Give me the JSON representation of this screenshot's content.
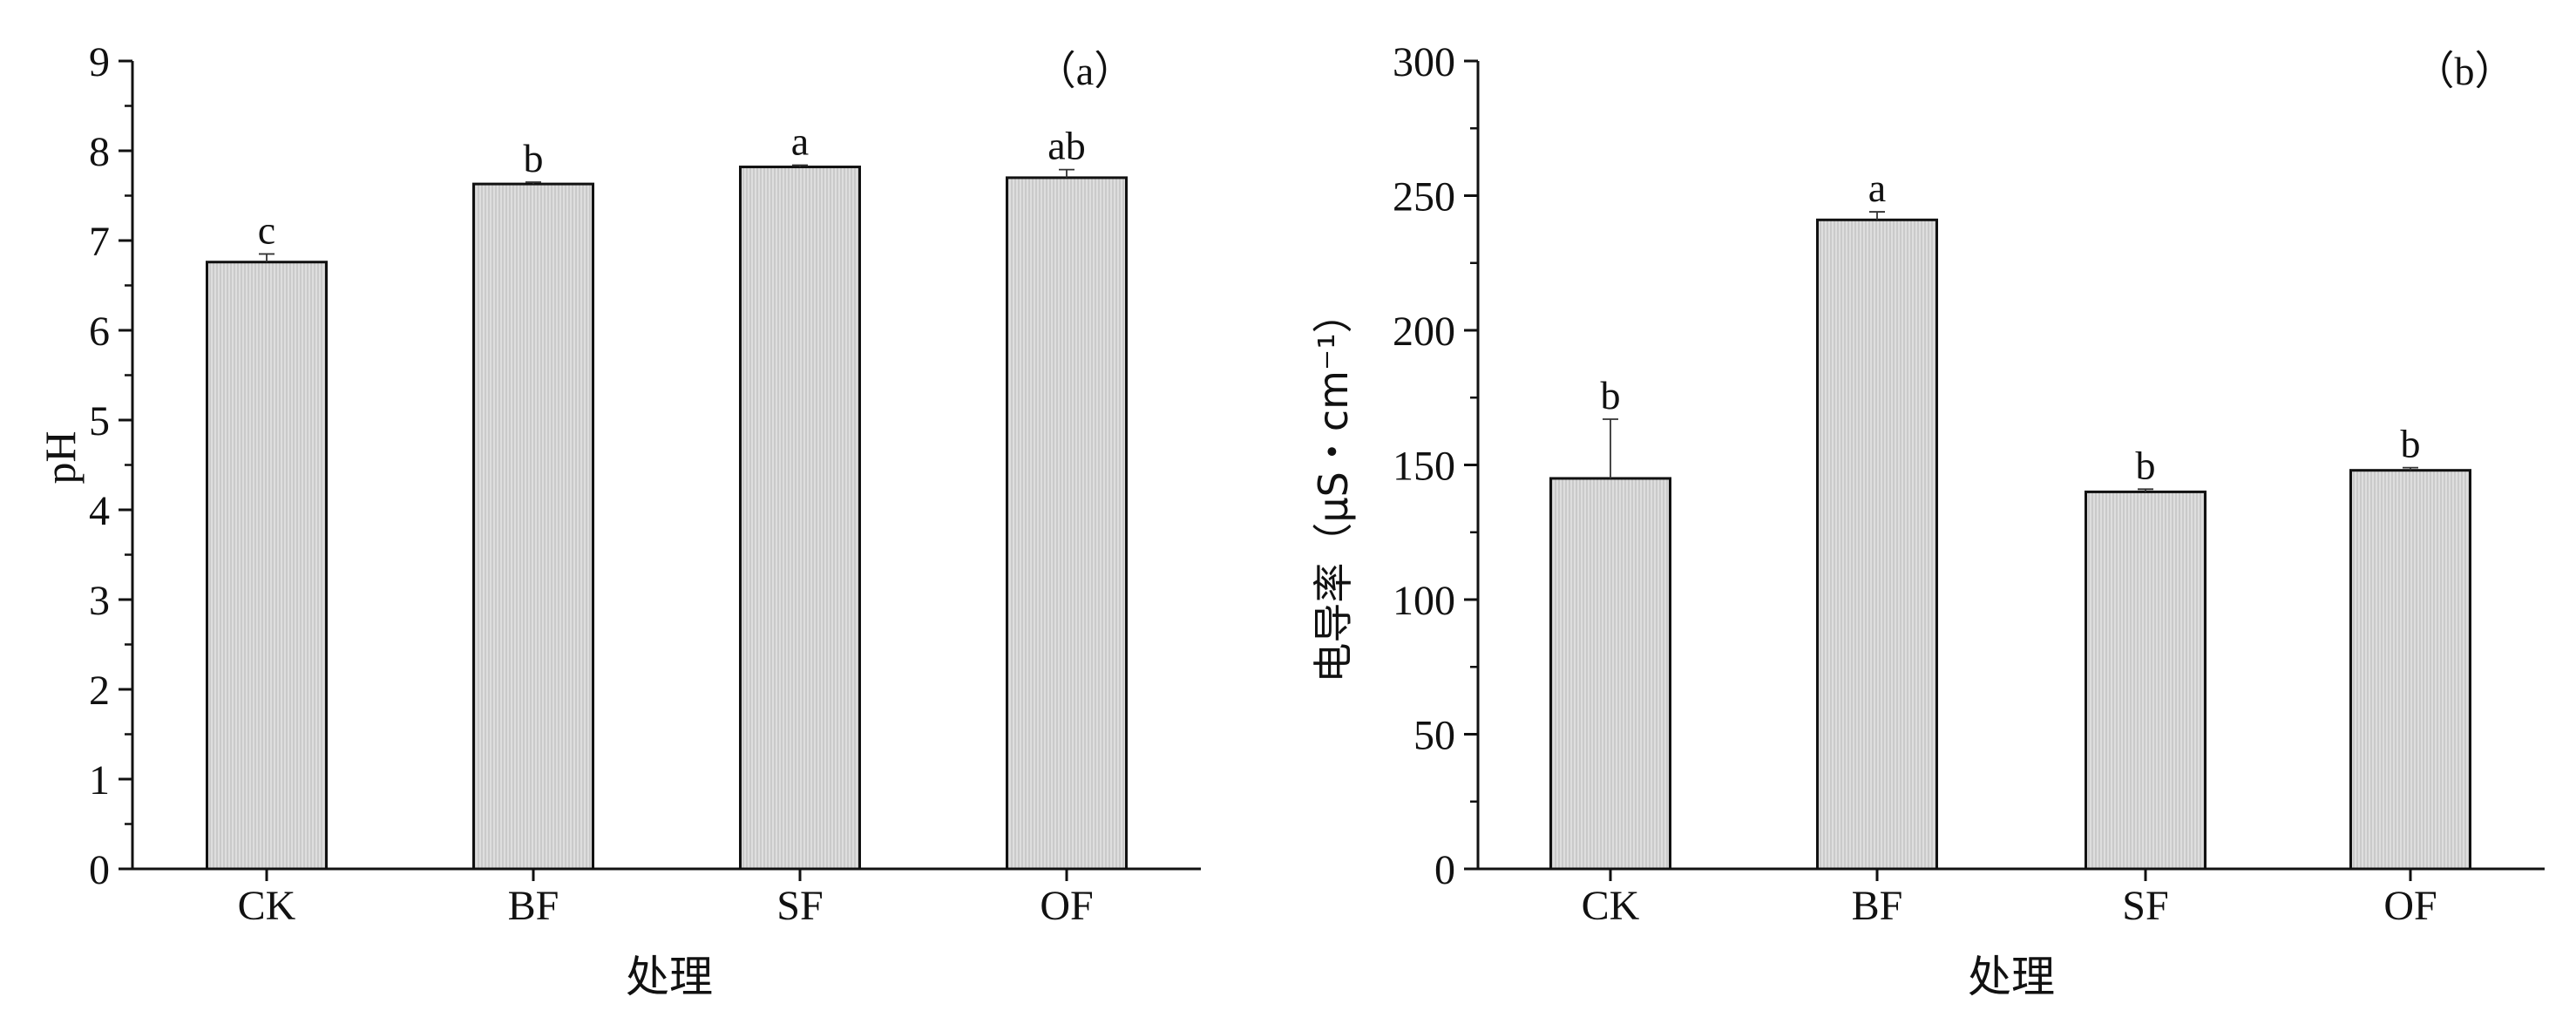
{
  "chart_data": [
    {
      "type": "bar",
      "panel_label": "（a）",
      "title": "",
      "xlabel": "处理",
      "ylabel": "pH",
      "categories": [
        "CK",
        "BF",
        "SF",
        "OF"
      ],
      "values": [
        6.76,
        7.63,
        7.82,
        7.7
      ],
      "errors": [
        0.09,
        0.02,
        0.02,
        0.09
      ],
      "significance_labels": [
        "c",
        "b",
        "a",
        "ab"
      ],
      "ylim": [
        0,
        9
      ],
      "yticks": [
        "0",
        "1",
        "2",
        "3",
        "4",
        "5",
        "6",
        "7",
        "8",
        "9"
      ],
      "grid": false,
      "bar_color": "#d9d9d9",
      "bar_edge_color": "#111111"
    },
    {
      "type": "bar",
      "panel_label": "（b）",
      "title": "",
      "xlabel": "处理",
      "ylabel": "电导率（μS・cm⁻¹）",
      "categories": [
        "CK",
        "BF",
        "SF",
        "OF"
      ],
      "values": [
        145,
        241,
        140,
        148
      ],
      "errors": [
        22,
        3,
        1,
        1
      ],
      "significance_labels": [
        "b",
        "a",
        "b",
        "b"
      ],
      "ylim": [
        0,
        300
      ],
      "yticks": [
        "0",
        "50",
        "100",
        "150",
        "200",
        "250",
        "300"
      ],
      "grid": false,
      "bar_color": "#d9d9d9",
      "bar_edge_color": "#111111"
    }
  ]
}
